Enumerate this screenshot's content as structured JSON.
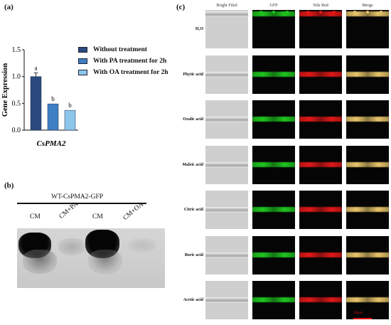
{
  "panel_a": {
    "letter": "(a)",
    "legend": [
      {
        "label": "Without treatment",
        "color": "#2a4a7f"
      },
      {
        "label": "With PA treatment for 2h",
        "color": "#3f7fc4"
      },
      {
        "label": "With OA treatment for 2h",
        "color": "#8cc6ea"
      }
    ],
    "gene_label": "CsPMA2"
  },
  "chart_data": {
    "type": "bar",
    "ylabel": "Gene Expression",
    "xlabel": "CsPMA2",
    "ylim": [
      0,
      1.5
    ],
    "yticks": [
      "0.0",
      "0.5",
      "1.0",
      "1.5"
    ],
    "series": [
      {
        "name": "Without treatment",
        "value": 1.0,
        "error": 0.07,
        "letter": "a",
        "color": "#2a4a7f"
      },
      {
        "name": "With PA treatment for 2h",
        "value": 0.49,
        "error": 0.0,
        "letter": "b",
        "color": "#3f7fc4"
      },
      {
        "name": "With OA treatment for 2h",
        "value": 0.37,
        "error": 0.0,
        "letter": "b",
        "color": "#8cc6ea"
      }
    ]
  },
  "panel_b": {
    "letter": "(b)",
    "title": "WT-CsPMA2-GFP",
    "lanes": [
      "CM",
      "CM+PA",
      "CM",
      "CM+OA"
    ]
  },
  "panel_c": {
    "letter": "(c)",
    "columns": [
      "Bright Filed",
      "GFP",
      "Nile Red",
      "Merge"
    ],
    "rows": [
      {
        "label": "H₂O"
      },
      {
        "label": "Phytic acid"
      },
      {
        "label": "Oxalic acid"
      },
      {
        "label": "Maleic acid"
      },
      {
        "label": "Citric acid"
      },
      {
        "label": "Boric acid"
      },
      {
        "label": "Acetic acid"
      }
    ],
    "scale_label": "10μm",
    "colors": {
      "gfp": "#1fc51f",
      "nile": "#e01818",
      "merge": "#e7c46a",
      "scale": "#dd1111"
    }
  }
}
